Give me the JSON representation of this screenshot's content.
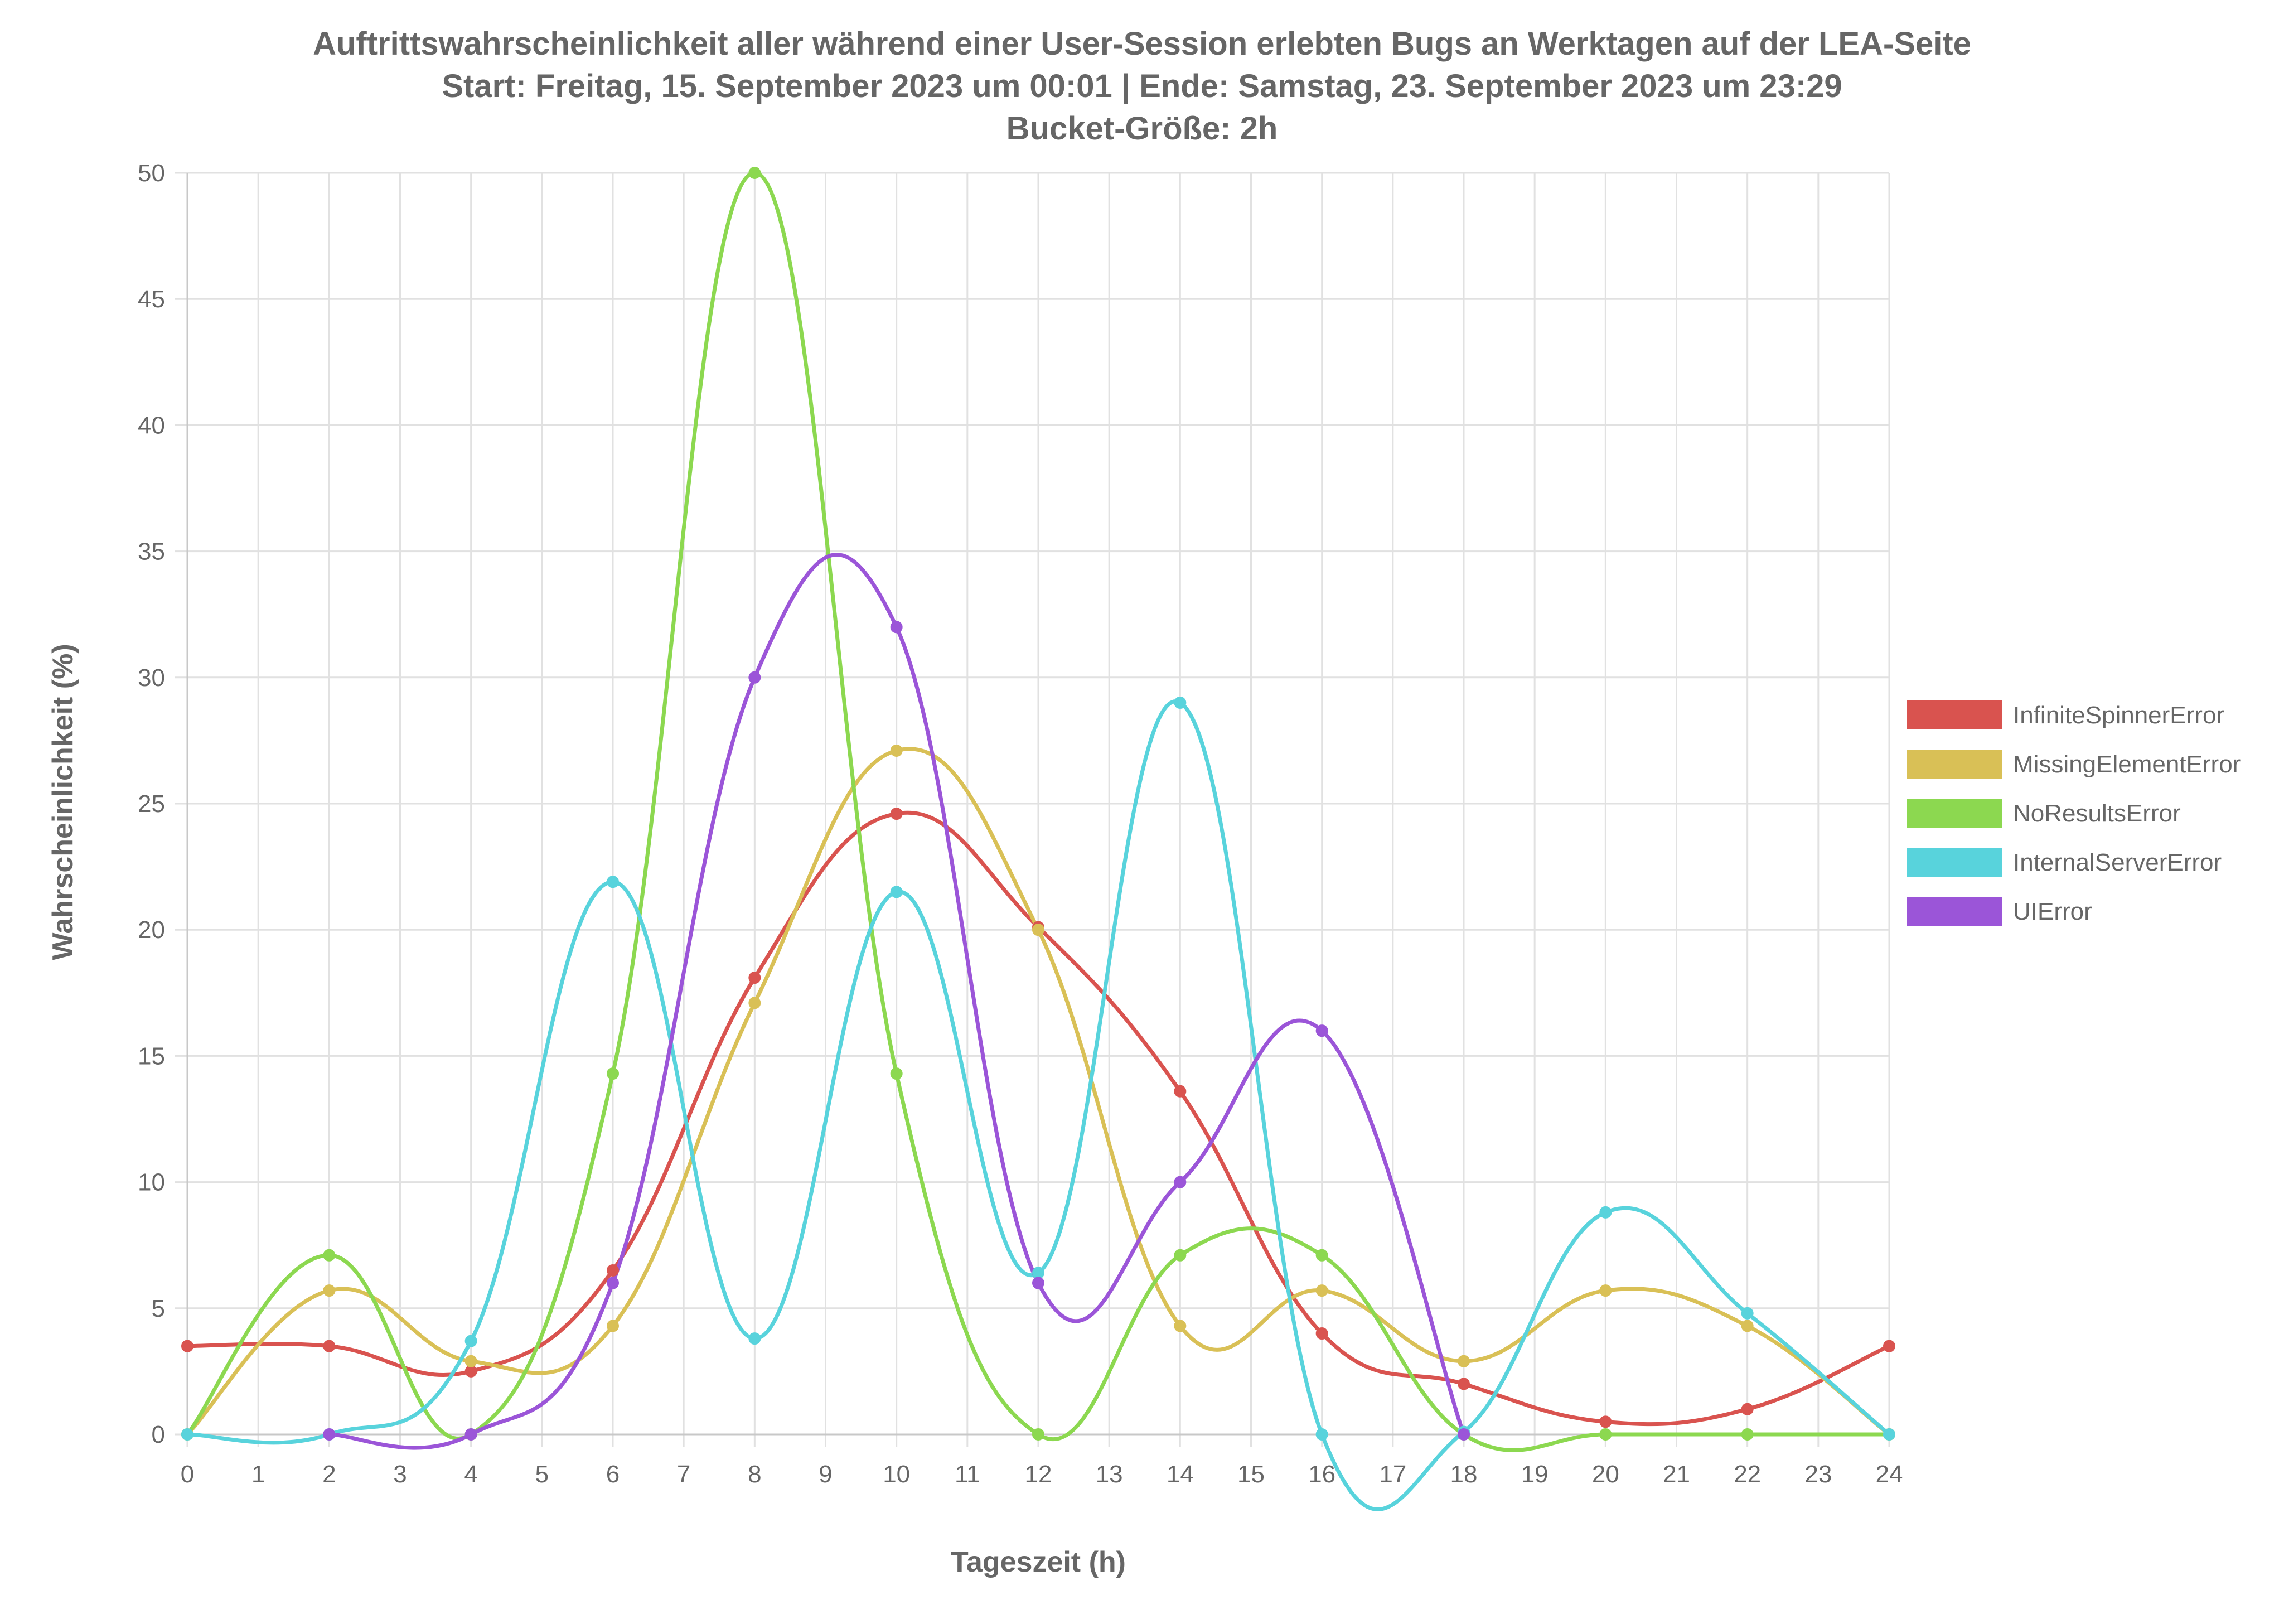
{
  "chart_data": {
    "type": "line",
    "title": [
      "Auftrittswahrscheinlichkeit aller während einer User-Session erlebten Bugs an Werktagen auf der LEA-Seite",
      "Start: Freitag, 15. September 2023 um 00:01 | Ende: Samstag, 23. September 2023 um 23:29",
      "Bucket-Größe: 2h"
    ],
    "xlabel": "Tageszeit (h)",
    "ylabel": "Wahrscheinlichkeit (%)",
    "xlim": [
      0,
      24
    ],
    "ylim": [
      0,
      50
    ],
    "x_ticks": [
      "0",
      "1",
      "2",
      "3",
      "4",
      "5",
      "6",
      "7",
      "8",
      "9",
      "10",
      "11",
      "12",
      "13",
      "14",
      "15",
      "16",
      "17",
      "18",
      "19",
      "20",
      "21",
      "22",
      "23",
      "24"
    ],
    "y_ticks": [
      "0",
      "5",
      "10",
      "15",
      "20",
      "25",
      "30",
      "35",
      "40",
      "45",
      "50"
    ],
    "grid": true,
    "legend_position": "right",
    "series": [
      {
        "name": "InfiniteSpinnerError",
        "color": "#d9534f",
        "points": [
          [
            0,
            3.5
          ],
          [
            2,
            3.5
          ],
          [
            4,
            2.5
          ],
          [
            6,
            6.5
          ],
          [
            8,
            18.1
          ],
          [
            10,
            24.6
          ],
          [
            12,
            20.1
          ],
          [
            14,
            13.6
          ],
          [
            16,
            4
          ],
          [
            18,
            2
          ],
          [
            20,
            0.5
          ],
          [
            22,
            1
          ],
          [
            24,
            3.5
          ]
        ]
      },
      {
        "name": "MissingElementError",
        "color": "#d9c056",
        "points": [
          [
            0,
            0
          ],
          [
            2,
            5.7
          ],
          [
            4,
            2.9
          ],
          [
            6,
            4.3
          ],
          [
            8,
            17.1
          ],
          [
            10,
            27.1
          ],
          [
            12,
            20
          ],
          [
            14,
            4.3
          ],
          [
            16,
            5.7
          ],
          [
            18,
            2.9
          ],
          [
            20,
            5.7
          ],
          [
            22,
            4.3
          ],
          [
            24,
            0
          ]
        ]
      },
      {
        "name": "NoResultsError",
        "color": "#8cd850",
        "points": [
          [
            0,
            0
          ],
          [
            2,
            7.1
          ],
          [
            4,
            0
          ],
          [
            6,
            14.3
          ],
          [
            8,
            50
          ],
          [
            10,
            14.3
          ],
          [
            12,
            0
          ],
          [
            14,
            7.1
          ],
          [
            16,
            7.1
          ],
          [
            18,
            0
          ],
          [
            20,
            0
          ],
          [
            22,
            0
          ],
          [
            24,
            0
          ]
        ]
      },
      {
        "name": "InternalServerError",
        "color": "#58d3dc",
        "points": [
          [
            0,
            0
          ],
          [
            2,
            0
          ],
          [
            4,
            3.7
          ],
          [
            6,
            21.9
          ],
          [
            8,
            3.8
          ],
          [
            10,
            21.5
          ],
          [
            12,
            6.4
          ],
          [
            14,
            29
          ],
          [
            16,
            0
          ],
          [
            18,
            0.1
          ],
          [
            20,
            8.8
          ],
          [
            22,
            4.8
          ],
          [
            24,
            0
          ]
        ]
      },
      {
        "name": "UIError",
        "color": "#9b55d8",
        "points": [
          [
            2,
            0
          ],
          [
            4,
            0
          ],
          [
            6,
            6
          ],
          [
            8,
            30
          ],
          [
            10,
            32
          ],
          [
            12,
            6
          ],
          [
            14,
            10
          ],
          [
            16,
            16
          ],
          [
            18,
            0
          ]
        ]
      }
    ]
  }
}
